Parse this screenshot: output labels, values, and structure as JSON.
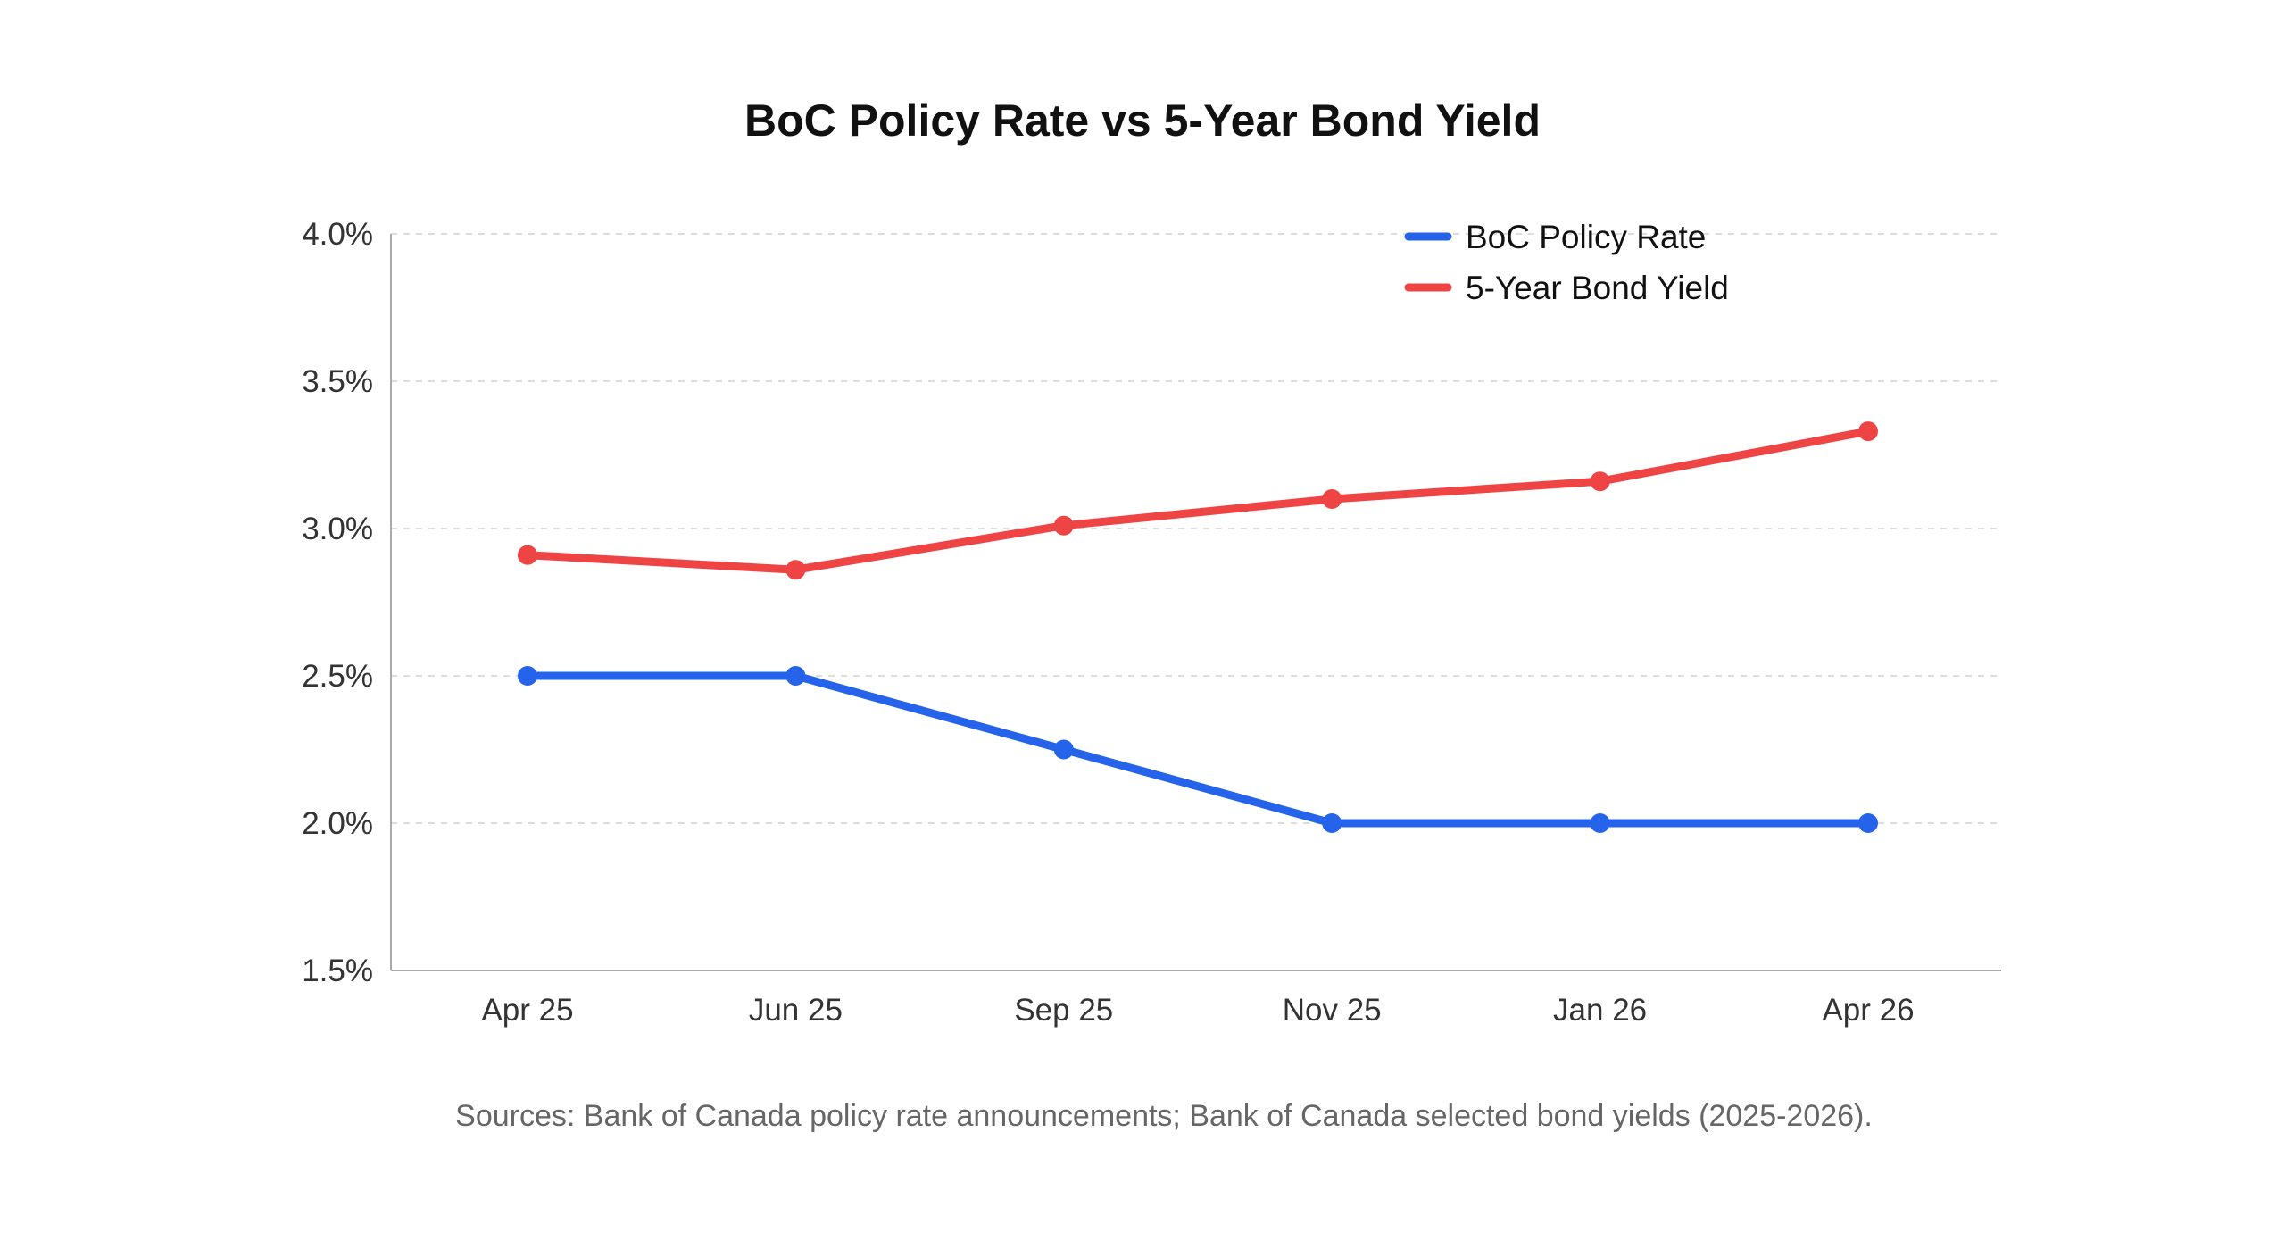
{
  "chart_data": {
    "type": "line",
    "title": "BoC Policy Rate vs 5-Year Bond Yield",
    "categories": [
      "Apr 25",
      "Jun 25",
      "Sep 25",
      "Nov 25",
      "Jan 26",
      "Apr 26"
    ],
    "series": [
      {
        "name": "BoC Policy Rate",
        "color": "#2563eb",
        "values": [
          2.5,
          2.5,
          2.25,
          2.0,
          2.0,
          2.0
        ]
      },
      {
        "name": "5-Year Bond Yield",
        "color": "#ef4444",
        "values": [
          2.91,
          2.86,
          3.01,
          3.1,
          3.16,
          3.33
        ]
      }
    ],
    "ylim": [
      1.5,
      4.0
    ],
    "yticks": [
      1.5,
      2.0,
      2.5,
      3.0,
      3.5,
      4.0
    ],
    "ytick_labels": [
      "1.5%",
      "2.0%",
      "2.5%",
      "3.0%",
      "3.5%",
      "4.0%"
    ],
    "xlabel": "",
    "ylabel": "",
    "grid": true,
    "legend_position": "top-right",
    "source": "Sources: Bank of Canada policy rate announcements; Bank of Canada selected bond yields (2025-2026)."
  }
}
